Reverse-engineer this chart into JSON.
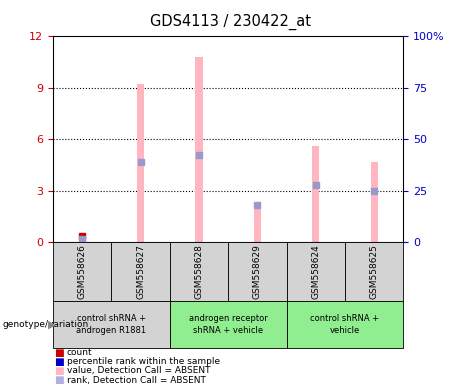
{
  "title": "GDS4113 / 230422_at",
  "samples": [
    "GSM558626",
    "GSM558627",
    "GSM558628",
    "GSM558629",
    "GSM558624",
    "GSM558625"
  ],
  "pink_bar_values": [
    0.28,
    9.2,
    10.8,
    2.2,
    5.6,
    4.65
  ],
  "blue_sq_values_pct": [
    1.5,
    39.0,
    42.5,
    18.0,
    27.5,
    25.0
  ],
  "red_sq_values": [
    0.35,
    0.0,
    0.0,
    0.0,
    0.0,
    0.0
  ],
  "left_ylim": [
    0,
    12
  ],
  "right_ylim": [
    0,
    100
  ],
  "left_yticks": [
    0,
    3,
    6,
    9,
    12
  ],
  "right_yticks": [
    0,
    25,
    50,
    75,
    100
  ],
  "left_tick_color": "#cc0000",
  "right_tick_color": "#0000cc",
  "pink_color": "#ffb6c1",
  "blue_sq_color": "#9999cc",
  "red_color": "#cc0000",
  "sample_box_color": "#d3d3d3",
  "group_data": [
    {
      "start": 0,
      "end": 1,
      "label": "control shRNA +\nandrogen R1881",
      "color": "#d3d3d3"
    },
    {
      "start": 2,
      "end": 3,
      "label": "androgen receptor\nshRNA + vehicle",
      "color": "#90ee90"
    },
    {
      "start": 4,
      "end": 5,
      "label": "control shRNA +\nvehicle",
      "color": "#90ee90"
    }
  ],
  "legend_items": [
    {
      "color": "#cc0000",
      "label": "count"
    },
    {
      "color": "#0000cc",
      "label": "percentile rank within the sample"
    },
    {
      "color": "#ffb6c1",
      "label": "value, Detection Call = ABSENT"
    },
    {
      "color": "#b0b0e0",
      "label": "rank, Detection Call = ABSENT"
    }
  ]
}
